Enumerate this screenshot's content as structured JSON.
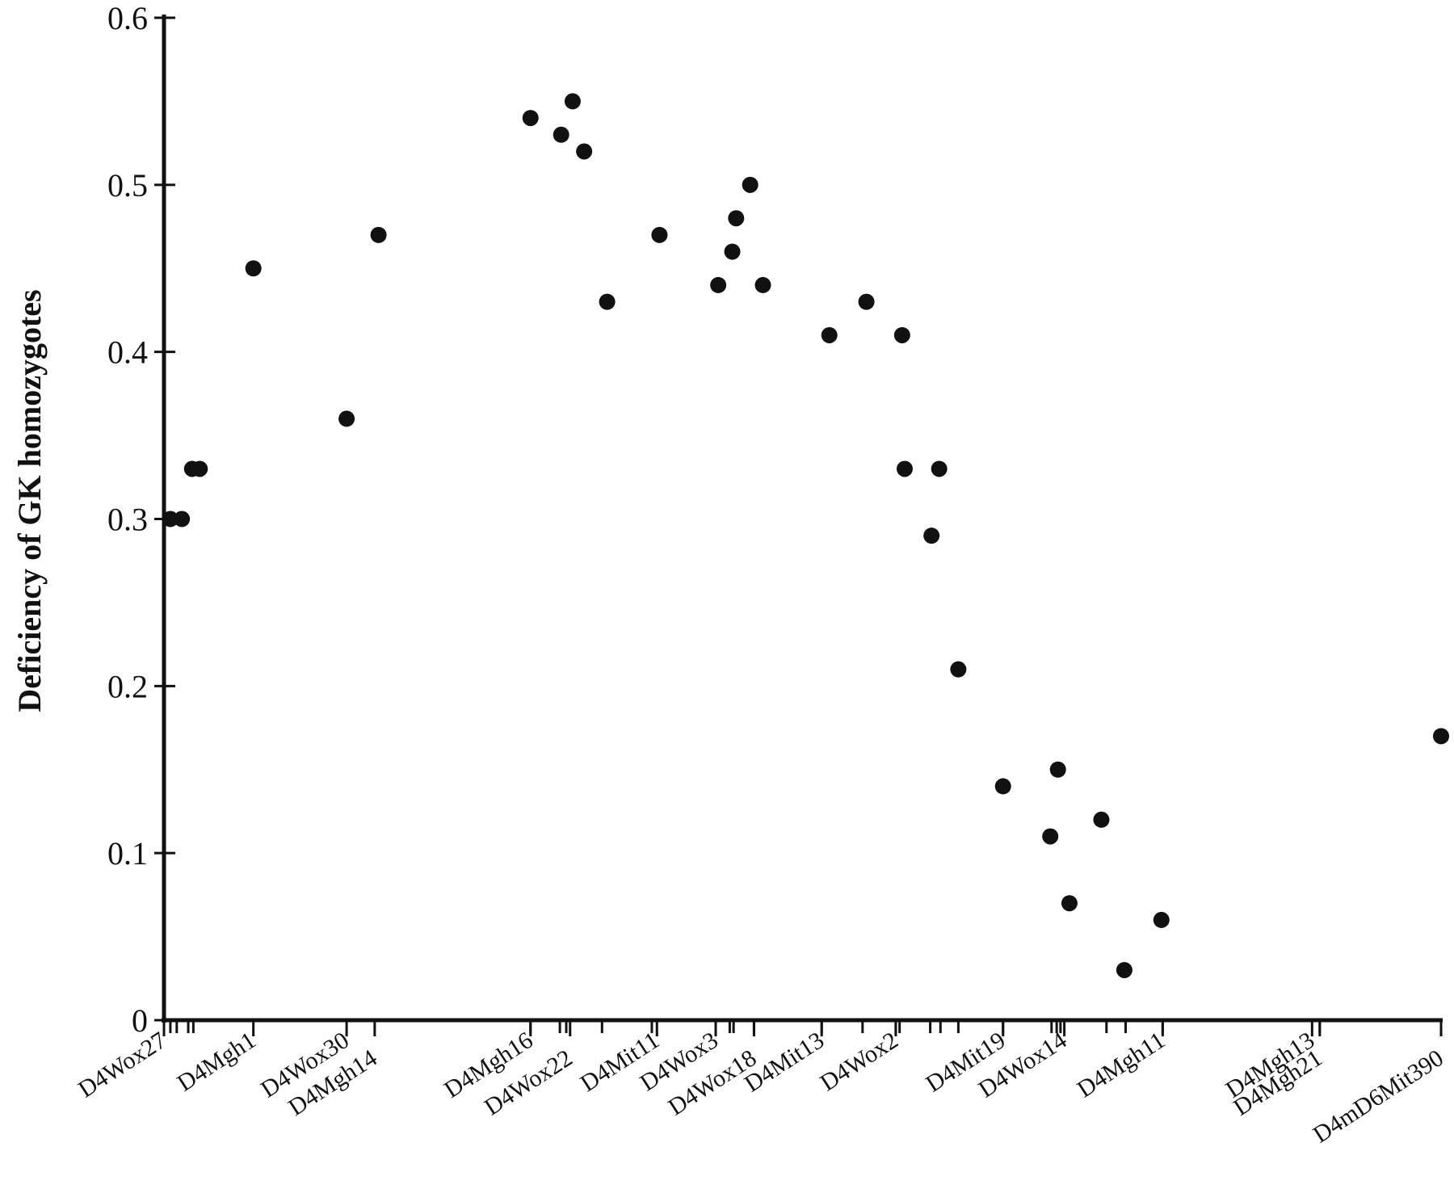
{
  "chart_data": {
    "type": "scatter",
    "title": "",
    "xlabel": "",
    "ylabel": "Deficiency of GK homozygotes",
    "ylim": [
      0,
      0.6
    ],
    "yticks": [
      "0",
      "0.1",
      "0.2",
      "0.3",
      "0.4",
      "0.5",
      "0.6"
    ],
    "grid": false,
    "x_unit_note": "marker order along chromosome 4 (relative position index, 0 = D4Wox27, 1 = D4mD6Mit390)",
    "xlim": [
      0,
      1
    ],
    "markers": [
      {
        "label": "D4Wox27",
        "x": 0.0
      },
      {
        "label": "D4Mgh1",
        "x": 0.07
      },
      {
        "label": "D4Wox30",
        "x": 0.143
      },
      {
        "label": "D4Mgh14",
        "x": 0.165
      },
      {
        "label": "D4Mgh16",
        "x": 0.287
      },
      {
        "label": "D4Wox22",
        "x": 0.318
      },
      {
        "label": "D4Mit11",
        "x": 0.386
      },
      {
        "label": "D4Wox3",
        "x": 0.432
      },
      {
        "label": "D4Wox18",
        "x": 0.462
      },
      {
        "label": "D4Mit13",
        "x": 0.515
      },
      {
        "label": "D4Wox2",
        "x": 0.573
      },
      {
        "label": "D4Mit19",
        "x": 0.657
      },
      {
        "label": "D4Wox14",
        "x": 0.705
      },
      {
        "label": "D4Mgh11",
        "x": 0.782
      },
      {
        "label": "D4Mgh13",
        "x": 0.899
      },
      {
        "label": "D4Mgh21",
        "x": 0.905
      },
      {
        "label": "D4mD6Mit390",
        "x": 1.0
      }
    ],
    "minor_ticks": [
      0.005,
      0.01,
      0.019,
      0.023,
      0.287,
      0.31,
      0.315,
      0.343,
      0.382,
      0.432,
      0.443,
      0.446,
      0.462,
      0.515,
      0.547,
      0.573,
      0.576,
      0.6,
      0.608,
      0.622,
      0.657,
      0.695,
      0.699,
      0.702,
      0.738,
      0.753,
      0.782,
      0.905
    ],
    "points": [
      {
        "x": 0.005,
        "y": 0.3
      },
      {
        "x": 0.014,
        "y": 0.3
      },
      {
        "x": 0.022,
        "y": 0.33
      },
      {
        "x": 0.028,
        "y": 0.33
      },
      {
        "x": 0.07,
        "y": 0.45
      },
      {
        "x": 0.143,
        "y": 0.36
      },
      {
        "x": 0.168,
        "y": 0.47
      },
      {
        "x": 0.287,
        "y": 0.54
      },
      {
        "x": 0.311,
        "y": 0.53
      },
      {
        "x": 0.32,
        "y": 0.55
      },
      {
        "x": 0.329,
        "y": 0.52
      },
      {
        "x": 0.347,
        "y": 0.43
      },
      {
        "x": 0.388,
        "y": 0.47
      },
      {
        "x": 0.434,
        "y": 0.44
      },
      {
        "x": 0.445,
        "y": 0.46
      },
      {
        "x": 0.448,
        "y": 0.48
      },
      {
        "x": 0.459,
        "y": 0.5
      },
      {
        "x": 0.469,
        "y": 0.44
      },
      {
        "x": 0.521,
        "y": 0.41
      },
      {
        "x": 0.55,
        "y": 0.43
      },
      {
        "x": 0.578,
        "y": 0.41
      },
      {
        "x": 0.58,
        "y": 0.33
      },
      {
        "x": 0.601,
        "y": 0.29
      },
      {
        "x": 0.607,
        "y": 0.33
      },
      {
        "x": 0.622,
        "y": 0.21
      },
      {
        "x": 0.657,
        "y": 0.14
      },
      {
        "x": 0.694,
        "y": 0.11
      },
      {
        "x": 0.7,
        "y": 0.15
      },
      {
        "x": 0.709,
        "y": 0.07
      },
      {
        "x": 0.734,
        "y": 0.12
      },
      {
        "x": 0.752,
        "y": 0.03
      },
      {
        "x": 0.781,
        "y": 0.06
      },
      {
        "x": 1.0,
        "y": 0.17
      }
    ]
  }
}
